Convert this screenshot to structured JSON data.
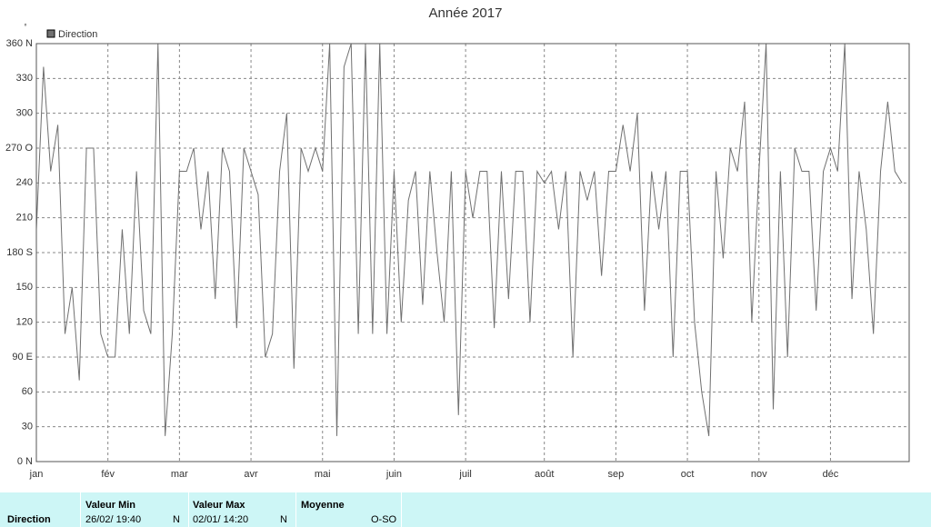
{
  "chart_data": {
    "type": "line",
    "title": "Année 2017",
    "unit": "°",
    "categories": [
      "jan",
      null,
      null,
      null,
      null,
      null,
      null,
      null,
      null,
      null,
      "fév",
      null,
      null,
      null,
      null,
      null,
      null,
      null,
      null,
      null,
      "mar",
      null,
      null,
      null,
      null,
      null,
      null,
      null,
      null,
      null,
      "avr",
      null,
      null,
      null,
      null,
      null,
      null,
      null,
      null,
      null,
      "mai",
      null,
      null,
      null,
      null,
      null,
      null,
      null,
      null,
      null,
      "juin",
      null,
      null,
      null,
      null,
      null,
      null,
      null,
      null,
      null,
      "juil",
      null,
      null,
      null,
      null,
      null,
      null,
      null,
      null,
      null,
      null,
      "août",
      null,
      null,
      null,
      null,
      null,
      null,
      null,
      null,
      null,
      "sep",
      null,
      null,
      null,
      null,
      null,
      null,
      null,
      null,
      null,
      "oct",
      null,
      null,
      null,
      null,
      null,
      null,
      null,
      null,
      null,
      "nov",
      null,
      null,
      null,
      null,
      null,
      null,
      null,
      null,
      null,
      "déc",
      null,
      null,
      null,
      null,
      null,
      null,
      null,
      null,
      null,
      null
    ],
    "series": [
      {
        "name": "Direction",
        "color": "#707070",
        "values": [
          200,
          340,
          250,
          290,
          110,
          150,
          70,
          270,
          270,
          110,
          90,
          90,
          200,
          110,
          250,
          130,
          110,
          360,
          22,
          110,
          250,
          250,
          270,
          200,
          250,
          140,
          270,
          250,
          115,
          270,
          250,
          230,
          90,
          110,
          250,
          300,
          80,
          270,
          250,
          270,
          250,
          360,
          22,
          340,
          360,
          110,
          360,
          110,
          360,
          110,
          250,
          120,
          225,
          250,
          135,
          250,
          180,
          120,
          250,
          40,
          250,
          210,
          250,
          250,
          115,
          250,
          140,
          250,
          250,
          120,
          250,
          240,
          250,
          200,
          250,
          90,
          250,
          225,
          250,
          160,
          250,
          250,
          290,
          250,
          300,
          130,
          250,
          200,
          250,
          90,
          250,
          250,
          120,
          60,
          22,
          250,
          175,
          270,
          250,
          310,
          120,
          250,
          360,
          45,
          250,
          90,
          270,
          250,
          250,
          130,
          250,
          270,
          250,
          360,
          140,
          250,
          200,
          110,
          250,
          310,
          250,
          240
        ]
      }
    ],
    "ylim": [
      0,
      360
    ],
    "yticks": [
      {
        "value": 0,
        "label": "0 N"
      },
      30,
      60,
      {
        "value": 90,
        "label": "90 E"
      },
      120,
      150,
      {
        "value": 180,
        "label": "180 S"
      },
      210,
      240,
      {
        "value": 270,
        "label": "270 O"
      },
      300,
      330,
      {
        "value": 360,
        "label": "360 N"
      }
    ],
    "grid": true,
    "legend": "top-left"
  },
  "table": {
    "row_label": "Direction",
    "min": {
      "header": "Valeur Min",
      "date": "26/02/ 19:40",
      "value": "N"
    },
    "max": {
      "header": "Valeur Max",
      "date": "02/01/ 14:20",
      "value": "N"
    },
    "mean": {
      "header": "Moyenne",
      "value": "O-SO"
    }
  }
}
